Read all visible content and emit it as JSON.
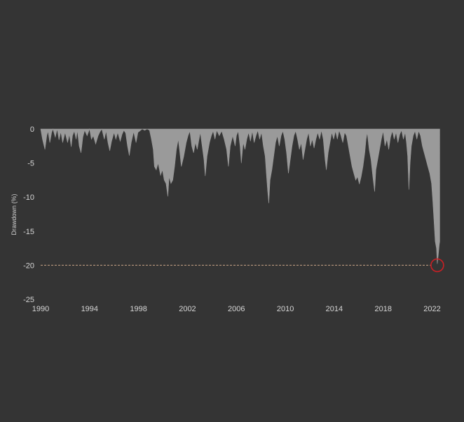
{
  "chart_data": {
    "type": "area",
    "title": "",
    "xlabel": "",
    "ylabel": "Drawdown (%)",
    "xlim": [
      1990,
      2023
    ],
    "ylim": [
      -25,
      0
    ],
    "x_ticks": [
      "1990",
      "1994",
      "1998",
      "2002",
      "2006",
      "2010",
      "2014",
      "2018",
      "2022"
    ],
    "y_ticks": [
      "0",
      "-5",
      "-10",
      "-15",
      "-20",
      "-25"
    ],
    "grid": false,
    "legend": "none",
    "colors": {
      "background": "#343434",
      "area": "#9a9a9a",
      "reference_line": "#c9a486",
      "marker": "#cc1f24"
    },
    "series": [
      {
        "values": [
          [
            1990.0,
            0
          ],
          [
            1990.15,
            -1.5
          ],
          [
            1990.35,
            -3.0
          ],
          [
            1990.5,
            -1.0
          ],
          [
            1990.6,
            -0.3
          ],
          [
            1990.75,
            -2.0
          ],
          [
            1990.9,
            -0.5
          ],
          [
            1991.0,
            0
          ],
          [
            1991.2,
            -1.2
          ],
          [
            1991.35,
            0
          ],
          [
            1991.5,
            -1.6
          ],
          [
            1991.65,
            -0.4
          ],
          [
            1991.8,
            -2.0
          ],
          [
            1992.0,
            -0.5
          ],
          [
            1992.2,
            -2.0
          ],
          [
            1992.35,
            -0.8
          ],
          [
            1992.5,
            -2.6
          ],
          [
            1992.6,
            -1.0
          ],
          [
            1992.75,
            -0.3
          ],
          [
            1992.9,
            -1.5
          ],
          [
            1993.0,
            -0.2
          ],
          [
            1993.15,
            -2.5
          ],
          [
            1993.3,
            -3.5
          ],
          [
            1993.45,
            -1.2
          ],
          [
            1993.6,
            -0.2
          ],
          [
            1993.8,
            -1.0
          ],
          [
            1994.0,
            0
          ],
          [
            1994.15,
            -1.5
          ],
          [
            1994.3,
            -1.0
          ],
          [
            1994.5,
            -2.2
          ],
          [
            1994.7,
            -1.0
          ],
          [
            1994.85,
            -0.4
          ],
          [
            1995.0,
            0
          ],
          [
            1995.2,
            -1.5
          ],
          [
            1995.35,
            -0.3
          ],
          [
            1995.5,
            -2.0
          ],
          [
            1995.65,
            -3.2
          ],
          [
            1995.8,
            -1.8
          ],
          [
            1996.0,
            -0.5
          ],
          [
            1996.15,
            -1.5
          ],
          [
            1996.3,
            -0.5
          ],
          [
            1996.5,
            -1.8
          ],
          [
            1996.65,
            -0.8
          ],
          [
            1996.8,
            -0.2
          ],
          [
            1996.95,
            -0.6
          ],
          [
            1997.1,
            -2.5
          ],
          [
            1997.25,
            -3.9
          ],
          [
            1997.4,
            -2.0
          ],
          [
            1997.6,
            -0.4
          ],
          [
            1997.8,
            -2.0
          ],
          [
            1997.95,
            -0.5
          ],
          [
            1998.1,
            -0.3
          ],
          [
            1998.3,
            0
          ],
          [
            1998.5,
            -0.2
          ],
          [
            1998.7,
            0
          ],
          [
            1998.9,
            -0.2
          ],
          [
            1999.05,
            -1.5
          ],
          [
            1999.2,
            -3.0
          ],
          [
            1999.3,
            -5.5
          ],
          [
            1999.45,
            -6.0
          ],
          [
            1999.6,
            -5.0
          ],
          [
            1999.8,
            -6.8
          ],
          [
            1999.95,
            -6.0
          ],
          [
            2000.1,
            -7.5
          ],
          [
            2000.25,
            -8.0
          ],
          [
            2000.4,
            -9.9
          ],
          [
            2000.5,
            -7.0
          ],
          [
            2000.65,
            -8.0
          ],
          [
            2000.8,
            -7.5
          ],
          [
            2000.95,
            -5.5
          ],
          [
            2001.1,
            -3.0
          ],
          [
            2001.25,
            -1.5
          ],
          [
            2001.35,
            -3.0
          ],
          [
            2001.5,
            -5.5
          ],
          [
            2001.7,
            -4.0
          ],
          [
            2001.9,
            -2.0
          ],
          [
            2002.05,
            -1.0
          ],
          [
            2002.2,
            -0.3
          ],
          [
            2002.35,
            -2.5
          ],
          [
            2002.5,
            -3.5
          ],
          [
            2002.65,
            -2.0
          ],
          [
            2002.8,
            -3.0
          ],
          [
            2002.95,
            -1.5
          ],
          [
            2003.05,
            -0.5
          ],
          [
            2003.2,
            -2.5
          ],
          [
            2003.35,
            -4.5
          ],
          [
            2003.45,
            -6.9
          ],
          [
            2003.6,
            -4.0
          ],
          [
            2003.8,
            -2.0
          ],
          [
            2003.95,
            -1.0
          ],
          [
            2004.1,
            -0.3
          ],
          [
            2004.25,
            -1.5
          ],
          [
            2004.4,
            -0.2
          ],
          [
            2004.6,
            -1.0
          ],
          [
            2004.8,
            -0.3
          ],
          [
            2005.0,
            -1.5
          ],
          [
            2005.2,
            -3.0
          ],
          [
            2005.35,
            -5.5
          ],
          [
            2005.5,
            -2.5
          ],
          [
            2005.7,
            -1.0
          ],
          [
            2005.9,
            -2.5
          ],
          [
            2006.0,
            -1.0
          ],
          [
            2006.15,
            -0.3
          ],
          [
            2006.3,
            -2.5
          ],
          [
            2006.4,
            -5.0
          ],
          [
            2006.55,
            -2.0
          ],
          [
            2006.7,
            -3.0
          ],
          [
            2006.85,
            -1.5
          ],
          [
            2007.0,
            -0.5
          ],
          [
            2007.15,
            -1.8
          ],
          [
            2007.3,
            -0.3
          ],
          [
            2007.45,
            -2.0
          ],
          [
            2007.6,
            -1.0
          ],
          [
            2007.75,
            -0.2
          ],
          [
            2007.9,
            -1.5
          ],
          [
            2008.05,
            -0.5
          ],
          [
            2008.2,
            -2.5
          ],
          [
            2008.35,
            -4.0
          ],
          [
            2008.45,
            -6.5
          ],
          [
            2008.55,
            -9.0
          ],
          [
            2008.65,
            -10.9
          ],
          [
            2008.75,
            -7.5
          ],
          [
            2008.9,
            -6.0
          ],
          [
            2009.05,
            -4.0
          ],
          [
            2009.2,
            -2.0
          ],
          [
            2009.35,
            -1.0
          ],
          [
            2009.5,
            -2.5
          ],
          [
            2009.65,
            -1.0
          ],
          [
            2009.8,
            -0.3
          ],
          [
            2009.95,
            -1.5
          ],
          [
            2010.1,
            -3.5
          ],
          [
            2010.25,
            -6.5
          ],
          [
            2010.4,
            -4.5
          ],
          [
            2010.55,
            -2.5
          ],
          [
            2010.7,
            -1.0
          ],
          [
            2010.85,
            -0.3
          ],
          [
            2011.0,
            -1.5
          ],
          [
            2011.15,
            -3.0
          ],
          [
            2011.3,
            -2.0
          ],
          [
            2011.45,
            -4.5
          ],
          [
            2011.6,
            -3.0
          ],
          [
            2011.75,
            -1.5
          ],
          [
            2011.9,
            -0.5
          ],
          [
            2012.05,
            -2.5
          ],
          [
            2012.2,
            -1.5
          ],
          [
            2012.35,
            -2.8
          ],
          [
            2012.5,
            -1.5
          ],
          [
            2012.65,
            -0.5
          ],
          [
            2012.8,
            -1.5
          ],
          [
            2012.95,
            -0.2
          ],
          [
            2013.1,
            -1.5
          ],
          [
            2013.25,
            -4.5
          ],
          [
            2013.35,
            -6.0
          ],
          [
            2013.5,
            -3.5
          ],
          [
            2013.65,
            -2.0
          ],
          [
            2013.8,
            -0.5
          ],
          [
            2013.95,
            -1.5
          ],
          [
            2014.1,
            -0.3
          ],
          [
            2014.25,
            -1.5
          ],
          [
            2014.4,
            -0.2
          ],
          [
            2014.55,
            -1.0
          ],
          [
            2014.7,
            -2.0
          ],
          [
            2014.85,
            -0.5
          ],
          [
            2015.0,
            -1.0
          ],
          [
            2015.15,
            -2.5
          ],
          [
            2015.3,
            -4.0
          ],
          [
            2015.45,
            -5.5
          ],
          [
            2015.6,
            -6.5
          ],
          [
            2015.75,
            -7.5
          ],
          [
            2015.9,
            -7.0
          ],
          [
            2016.05,
            -8.1
          ],
          [
            2016.2,
            -7.0
          ],
          [
            2016.35,
            -5.5
          ],
          [
            2016.5,
            -3.5
          ],
          [
            2016.6,
            -1.5
          ],
          [
            2016.7,
            -0.5
          ],
          [
            2016.85,
            -3.0
          ],
          [
            2017.0,
            -4.5
          ],
          [
            2017.15,
            -7.0
          ],
          [
            2017.3,
            -9.2
          ],
          [
            2017.4,
            -6.0
          ],
          [
            2017.55,
            -4.5
          ],
          [
            2017.7,
            -3.0
          ],
          [
            2017.85,
            -1.5
          ],
          [
            2018.0,
            -0.3
          ],
          [
            2018.15,
            -2.5
          ],
          [
            2018.3,
            -1.5
          ],
          [
            2018.45,
            -3.0
          ],
          [
            2018.6,
            -1.2
          ],
          [
            2018.75,
            -0.3
          ],
          [
            2018.9,
            -1.5
          ],
          [
            2019.05,
            -0.5
          ],
          [
            2019.2,
            -2.0
          ],
          [
            2019.35,
            -0.8
          ],
          [
            2019.5,
            -0.2
          ],
          [
            2019.65,
            -1.5
          ],
          [
            2019.8,
            -0.5
          ],
          [
            2019.9,
            -2.0
          ],
          [
            2020.0,
            -4.0
          ],
          [
            2020.1,
            -8.9
          ],
          [
            2020.2,
            -5.0
          ],
          [
            2020.3,
            -2.5
          ],
          [
            2020.45,
            -1.0
          ],
          [
            2020.6,
            -0.3
          ],
          [
            2020.75,
            -1.5
          ],
          [
            2020.9,
            -0.3
          ],
          [
            2021.05,
            -1.0
          ],
          [
            2021.2,
            -2.5
          ],
          [
            2021.35,
            -3.5
          ],
          [
            2021.5,
            -4.5
          ],
          [
            2021.65,
            -5.5
          ],
          [
            2021.8,
            -6.5
          ],
          [
            2021.95,
            -8.0
          ],
          [
            2022.05,
            -10.5
          ],
          [
            2022.15,
            -13.5
          ],
          [
            2022.25,
            -16.5
          ],
          [
            2022.35,
            -17.5
          ],
          [
            2022.42,
            -19.8
          ],
          [
            2022.5,
            -18.5
          ],
          [
            2022.58,
            -17.0
          ],
          [
            2022.62,
            -16.5
          ]
        ]
      }
    ],
    "reference_line": {
      "y": -20
    },
    "marker": {
      "x": 2022.42,
      "y": -20
    }
  }
}
